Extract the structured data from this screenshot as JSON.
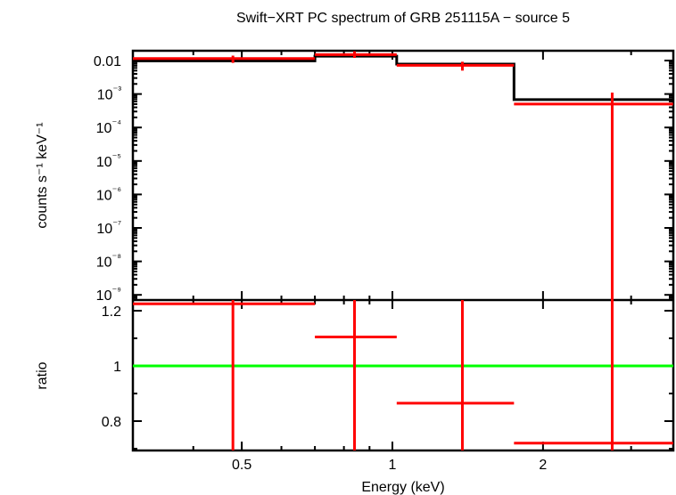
{
  "chart_data": [
    {
      "type": "line",
      "panel": "spectrum",
      "title": "Swift-XRT PC spectrum of GRB 251115A - source 5",
      "xlabel": "Energy (keV)",
      "ylabel": "counts s⁻¹ keV⁻¹",
      "xscale": "log",
      "yscale": "log",
      "xlim": [
        0.3,
        3.6
      ],
      "ylim": [
        2e-10,
        0.02
      ],
      "yticks": [
        "0.01",
        "10⁻³",
        "10⁻⁴",
        "10⁻⁵",
        "10⁻⁶",
        "10⁻⁷",
        "10⁻⁸",
        "10⁻⁹"
      ],
      "series": [
        {
          "name": "data",
          "color": "#ff0000",
          "points": [
            {
              "x": 0.48,
              "xlo": 0.3,
              "xhi": 0.7,
              "y": 0.0115,
              "ylo": 0.0085,
              "yhi": 0.014
            },
            {
              "x": 0.84,
              "xlo": 0.7,
              "xhi": 1.02,
              "y": 0.015,
              "ylo": 0.012,
              "yhi": 0.019
            },
            {
              "x": 1.38,
              "xlo": 1.02,
              "xhi": 1.75,
              "y": 0.0072,
              "ylo": 0.005,
              "yhi": 0.0092
            },
            {
              "x": 2.75,
              "xlo": 1.75,
              "xhi": 3.64,
              "y": 0.0005,
              "ylo": 2e-10,
              "yhi": 0.0011
            }
          ]
        },
        {
          "name": "model",
          "color": "#000000",
          "steps": [
            {
              "xlo": 0.3,
              "xhi": 0.7,
              "y": 0.0098
            },
            {
              "xlo": 0.7,
              "xhi": 1.02,
              "y": 0.0135
            },
            {
              "xlo": 1.02,
              "xhi": 1.75,
              "y": 0.0078
            },
            {
              "xlo": 1.75,
              "xhi": 3.64,
              "y": 0.00068
            }
          ]
        }
      ]
    },
    {
      "type": "line",
      "panel": "ratio",
      "xlabel": "Energy (keV)",
      "ylabel": "ratio",
      "xscale": "log",
      "xlim": [
        0.3,
        3.6
      ],
      "ylim": [
        0.69,
        1.245
      ],
      "xticks": [
        "0.5",
        "1",
        "2"
      ],
      "yticks": [
        "0.8",
        "1",
        "1.2"
      ],
      "reference_line": {
        "y": 1,
        "color": "#00ff00"
      },
      "series": [
        {
          "name": "ratio",
          "color": "#ff0000",
          "points": [
            {
              "x": 0.48,
              "xlo": 0.3,
              "xhi": 0.7,
              "y": 1.225,
              "ylo": 0.69,
              "yhi": 1.245
            },
            {
              "x": 0.84,
              "xlo": 0.7,
              "xhi": 1.02,
              "y": 1.105,
              "ylo": 0.69,
              "yhi": 1.245
            },
            {
              "x": 1.38,
              "xlo": 1.02,
              "xhi": 1.75,
              "y": 0.865,
              "ylo": 0.69,
              "yhi": 1.245
            },
            {
              "x": 2.75,
              "xlo": 1.75,
              "xhi": 3.64,
              "y": 0.72,
              "ylo": 0.69,
              "yhi": 1.245
            }
          ]
        }
      ]
    }
  ],
  "labels": {
    "title": "Swift−XRT PC spectrum of GRB 251115A − source 5",
    "xlabel": "Energy (keV)",
    "ylabel_top": "counts s⁻¹ keV⁻¹",
    "ylabel_bottom": "ratio"
  },
  "colors": {
    "data": "#ff0000",
    "model": "#000000",
    "reference": "#00ff00",
    "axes": "#000000"
  }
}
